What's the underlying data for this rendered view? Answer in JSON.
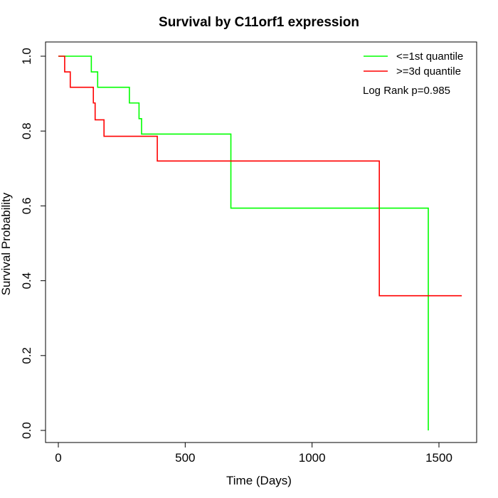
{
  "chart_data": {
    "type": "line",
    "step": true,
    "title": "Survival by C11orf1 expression",
    "xlabel": "Time (Days)",
    "ylabel": "Survival Probability",
    "xlim": [
      0,
      1590
    ],
    "ylim": [
      0,
      1
    ],
    "xticks": [
      0,
      500,
      1000,
      1500
    ],
    "yticks": [
      0.0,
      0.2,
      0.4,
      0.6,
      0.8,
      1.0
    ],
    "xtick_labels": [
      "0",
      "500",
      "1000",
      "1500"
    ],
    "ytick_labels": [
      "0.0",
      "0.2",
      "0.4",
      "0.6",
      "0.8",
      "1.0"
    ],
    "grid": false,
    "legend_position": "top-right",
    "annotation": "Log Rank p=0.985",
    "series": [
      {
        "name": "<=1st quantile",
        "color": "#00ff00",
        "x": [
          0,
          130,
          155,
          280,
          318,
          328,
          680,
          1458,
          1458
        ],
        "y": [
          1.0,
          0.958,
          0.917,
          0.875,
          0.833,
          0.792,
          0.594,
          0.594,
          0.0
        ]
      },
      {
        "name": ">=3d quantile",
        "color": "#ff0000",
        "x": [
          0,
          25,
          47,
          138,
          145,
          180,
          390,
          1265,
          1590
        ],
        "y": [
          1.0,
          0.958,
          0.917,
          0.875,
          0.83,
          0.786,
          0.72,
          0.36,
          0.36
        ]
      }
    ]
  }
}
